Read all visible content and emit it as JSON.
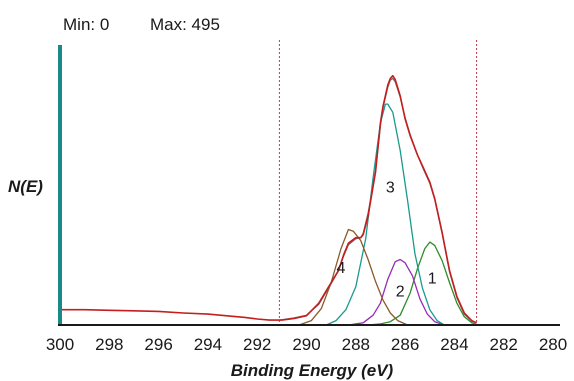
{
  "header": {
    "min_label": "Min: 0",
    "max_label": "Max: 495"
  },
  "chart_data": {
    "type": "line",
    "title": "",
    "xlabel": "Binding Energy (eV)",
    "ylabel": "N(E)",
    "x_ticks": [
      300,
      298,
      296,
      294,
      292,
      290,
      288,
      286,
      284,
      282,
      280
    ],
    "xlim": [
      300,
      280
    ],
    "x_reversed": true,
    "ylim": [
      0,
      495
    ],
    "grid": false,
    "region_markers": [
      291.1,
      283.1
    ],
    "series": [
      {
        "name": "",
        "role": "envelope",
        "color": "#c41e1e",
        "points": [
          [
            300,
            28
          ],
          [
            299,
            28
          ],
          [
            298,
            27
          ],
          [
            297,
            26
          ],
          [
            296,
            25
          ],
          [
            295,
            22
          ],
          [
            294,
            20
          ],
          [
            293,
            16
          ],
          [
            292.5,
            14
          ],
          [
            292,
            11
          ],
          [
            291.5,
            9
          ],
          [
            291.3,
            9
          ],
          [
            291,
            9
          ],
          [
            290.5,
            12
          ],
          [
            290,
            17
          ],
          [
            289.5,
            40
          ],
          [
            289,
            78
          ],
          [
            288.7,
            100
          ],
          [
            288.5,
            128
          ],
          [
            288.3,
            150
          ],
          [
            288,
            160
          ],
          [
            287.8,
            160
          ],
          [
            287.7,
            166
          ],
          [
            287.5,
            200
          ],
          [
            287.2,
            280
          ],
          [
            287,
            370
          ],
          [
            286.9,
            400
          ],
          [
            286.7,
            440
          ],
          [
            286.6,
            452
          ],
          [
            286.5,
            457
          ],
          [
            286.4,
            450
          ],
          [
            286.2,
            420
          ],
          [
            286,
            378
          ],
          [
            285.8,
            348
          ],
          [
            285.5,
            312
          ],
          [
            285.3,
            292
          ],
          [
            285.1,
            272
          ],
          [
            285,
            262
          ],
          [
            284.8,
            232
          ],
          [
            284.5,
            170
          ],
          [
            284.2,
            100
          ],
          [
            283.9,
            52
          ],
          [
            283.6,
            22
          ],
          [
            283.3,
            8
          ],
          [
            283.1,
            4
          ]
        ]
      },
      {
        "name": "",
        "role": "fit",
        "color": "#6e6e6e",
        "points": [
          [
            291.1,
            9
          ],
          [
            290.5,
            13
          ],
          [
            290,
            18
          ],
          [
            289.5,
            38
          ],
          [
            289,
            76
          ],
          [
            288.7,
            100
          ],
          [
            288.5,
            126
          ],
          [
            288.3,
            147
          ],
          [
            288,
            158
          ],
          [
            287.8,
            160
          ],
          [
            287.7,
            168
          ],
          [
            287.5,
            205
          ],
          [
            287.2,
            282
          ],
          [
            287,
            365
          ],
          [
            286.9,
            398
          ],
          [
            286.7,
            436
          ],
          [
            286.6,
            449
          ],
          [
            286.5,
            452
          ],
          [
            286.4,
            446
          ],
          [
            286.2,
            418
          ],
          [
            286,
            380
          ],
          [
            285.8,
            350
          ],
          [
            285.5,
            312
          ],
          [
            285.3,
            290
          ],
          [
            285.1,
            270
          ],
          [
            285,
            260
          ],
          [
            284.8,
            230
          ],
          [
            284.5,
            168
          ],
          [
            284.2,
            98
          ],
          [
            283.9,
            50
          ],
          [
            283.6,
            20
          ],
          [
            283.3,
            7
          ],
          [
            283.1,
            4
          ]
        ]
      },
      {
        "name": "",
        "role": "component",
        "label": "1",
        "color": "#2e8b2e",
        "points": [
          [
            287.5,
            0
          ],
          [
            287,
            2
          ],
          [
            286.6,
            6
          ],
          [
            286.2,
            18
          ],
          [
            285.8,
            58
          ],
          [
            285.5,
            103
          ],
          [
            285.2,
            140
          ],
          [
            285,
            152
          ],
          [
            284.8,
            146
          ],
          [
            284.5,
            118
          ],
          [
            284.2,
            78
          ],
          [
            283.9,
            40
          ],
          [
            283.6,
            15
          ],
          [
            283.3,
            4
          ],
          [
            283.1,
            1
          ]
        ]
      },
      {
        "name": "",
        "role": "component",
        "label": "2",
        "color": "#9a2ab8",
        "points": [
          [
            288.3,
            0
          ],
          [
            287.7,
            4
          ],
          [
            287.3,
            18
          ],
          [
            287,
            40
          ],
          [
            286.7,
            84
          ],
          [
            286.4,
            116
          ],
          [
            286.2,
            120
          ],
          [
            286,
            114
          ],
          [
            285.7,
            90
          ],
          [
            285.4,
            48
          ],
          [
            285.1,
            20
          ],
          [
            284.8,
            6
          ],
          [
            284.4,
            0
          ]
        ]
      },
      {
        "name": "",
        "role": "component",
        "label": "3",
        "color": "#1a9a8e",
        "points": [
          [
            289.2,
            0
          ],
          [
            288.8,
            8
          ],
          [
            288.4,
            28
          ],
          [
            288,
            70
          ],
          [
            287.6,
            158
          ],
          [
            287.3,
            270
          ],
          [
            287,
            370
          ],
          [
            286.8,
            405
          ],
          [
            286.7,
            405
          ],
          [
            286.5,
            390
          ],
          [
            286.2,
            320
          ],
          [
            285.9,
            228
          ],
          [
            285.6,
            130
          ],
          [
            285.3,
            68
          ],
          [
            285,
            28
          ],
          [
            284.7,
            8
          ],
          [
            284.4,
            0
          ]
        ]
      },
      {
        "name": "",
        "role": "component",
        "label": "4",
        "color": "#8b5a2b",
        "points": [
          [
            290.3,
            0
          ],
          [
            289.8,
            8
          ],
          [
            289.4,
            30
          ],
          [
            289,
            78
          ],
          [
            288.6,
            140
          ],
          [
            288.3,
            175
          ],
          [
            288.1,
            172
          ],
          [
            287.8,
            155
          ],
          [
            287.5,
            120
          ],
          [
            287.2,
            80
          ],
          [
            286.9,
            46
          ],
          [
            286.6,
            22
          ],
          [
            286.3,
            8
          ],
          [
            285.9,
            0
          ]
        ]
      }
    ],
    "annotations": [
      {
        "text": "3",
        "x": 286.6,
        "y": 243
      },
      {
        "text": "4",
        "x": 288.6,
        "y": 95
      },
      {
        "text": "2",
        "x": 286.2,
        "y": 52
      },
      {
        "text": "1",
        "x": 284.9,
        "y": 76
      }
    ]
  }
}
